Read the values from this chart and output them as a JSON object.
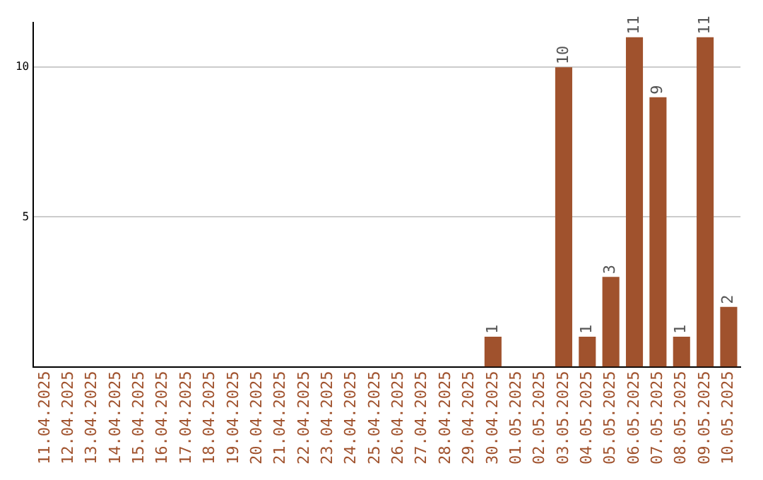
{
  "chart_data": {
    "type": "bar",
    "categories": [
      "11.04.2025",
      "12.04.2025",
      "13.04.2025",
      "14.04.2025",
      "15.04.2025",
      "16.04.2025",
      "17.04.2025",
      "18.04.2025",
      "19.04.2025",
      "20.04.2025",
      "21.04.2025",
      "22.04.2025",
      "23.04.2025",
      "24.04.2025",
      "25.04.2025",
      "26.04.2025",
      "27.04.2025",
      "28.04.2025",
      "29.04.2025",
      "30.04.2025",
      "01.05.2025",
      "02.05.2025",
      "03.05.2025",
      "04.05.2025",
      "05.05.2025",
      "06.05.2025",
      "07.05.2025",
      "08.05.2025",
      "09.05.2025",
      "10.05.2025"
    ],
    "values": [
      0,
      0,
      0,
      0,
      0,
      0,
      0,
      0,
      0,
      0,
      0,
      0,
      0,
      0,
      0,
      0,
      0,
      0,
      0,
      1,
      0,
      0,
      10,
      1,
      3,
      11,
      9,
      1,
      11,
      2
    ],
    "value_labels": [
      null,
      null,
      null,
      null,
      null,
      null,
      null,
      null,
      null,
      null,
      null,
      null,
      null,
      null,
      null,
      null,
      null,
      null,
      null,
      "1",
      null,
      null,
      "10",
      "1",
      "3",
      "11",
      "9",
      "1",
      "11",
      "2"
    ],
    "color": "#a0522d",
    "ylim": [
      0,
      11.5
    ],
    "yticks": [
      5,
      10
    ],
    "grid": "y",
    "legend": false
  }
}
